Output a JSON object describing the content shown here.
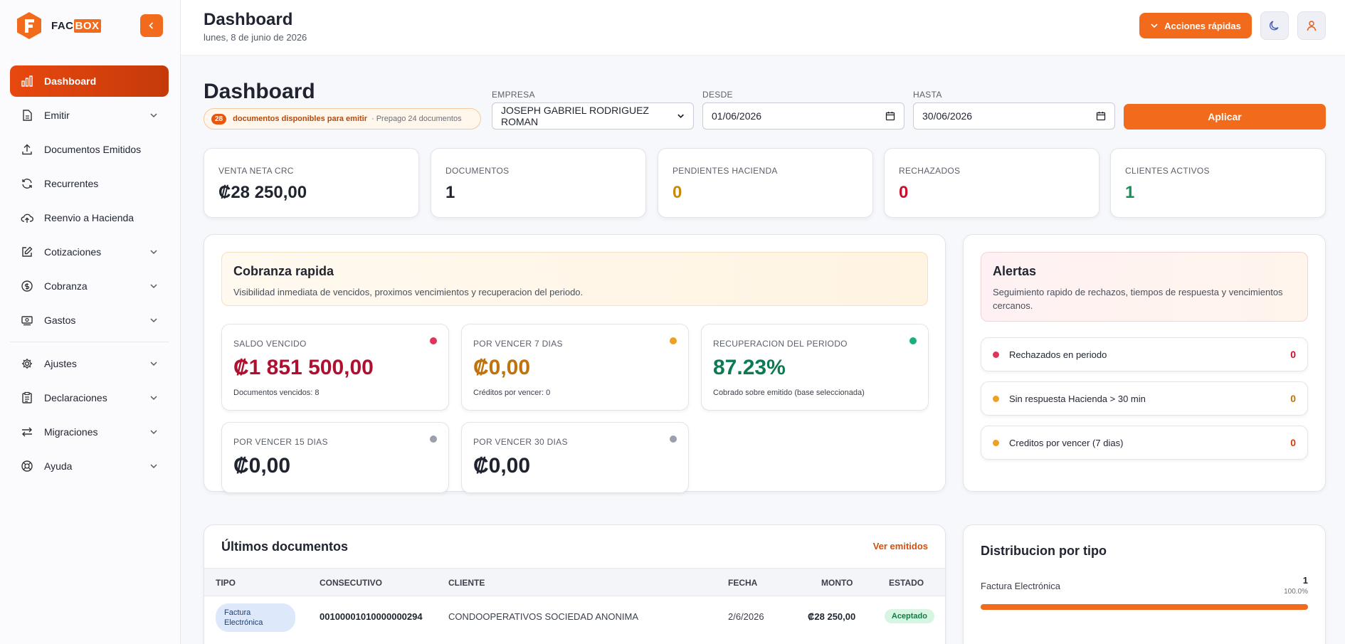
{
  "brand": {
    "name_a": "FAC",
    "name_b": "BOX"
  },
  "sidebar": {
    "items": [
      {
        "label": "Dashboard"
      },
      {
        "label": "Emitir"
      },
      {
        "label": "Documentos Emitidos"
      },
      {
        "label": "Recurrentes"
      },
      {
        "label": "Reenvio a Hacienda"
      },
      {
        "label": "Cotizaciones"
      },
      {
        "label": "Cobranza"
      },
      {
        "label": "Gastos"
      },
      {
        "label": "Ajustes"
      },
      {
        "label": "Declaraciones"
      },
      {
        "label": "Migraciones"
      },
      {
        "label": "Ayuda"
      }
    ]
  },
  "header": {
    "title": "Dashboard",
    "date": "lunes, 8 de junio de 2026",
    "quick_actions": "Acciones rápidas"
  },
  "main": {
    "title": "Dashboard",
    "pill": {
      "count": "28",
      "message": "documentos disponibles para emitir",
      "sub": "· Prepago 24 documentos"
    }
  },
  "filters": {
    "empresa_label": "EMPRESA",
    "empresa_value": "JOSEPH GABRIEL RODRIGUEZ ROMAN",
    "desde_label": "DESDE",
    "desde_value": "01/06/2026",
    "hasta_label": "HASTA",
    "hasta_value": "30/06/2026",
    "apply": "Aplicar"
  },
  "kpis": [
    {
      "label": "VENTA NETA CRC",
      "value": "₡28 250,00",
      "color": "#1f2430"
    },
    {
      "label": "DOCUMENTOS",
      "value": "1",
      "color": "#1f2430"
    },
    {
      "label": "PENDIENTES HACIENDA",
      "value": "0",
      "color": "#c98a0c"
    },
    {
      "label": "RECHAZADOS",
      "value": "0",
      "color": "#c8102e"
    },
    {
      "label": "CLIENTES ACTIVOS",
      "value": "1",
      "color": "#16915a"
    }
  ],
  "cobranza": {
    "title": "Cobranza rapida",
    "desc": "Visibilidad inmediata de vencidos, proximos vencimientos y recuperacion del periodo.",
    "cards": [
      {
        "label": "SALDO VENCIDO",
        "value": "₡1 851 500,00",
        "sub": "Documentos vencidos: 8",
        "color": "#b01030",
        "dot": "#e0345a"
      },
      {
        "label": "POR VENCER 7 DIAS",
        "value": "₡0,00",
        "sub": "Créditos por vencer: 0",
        "color": "#c0720e",
        "dot": "#f0a020"
      },
      {
        "label": "RECUPERACION DEL PERIODO",
        "value": "87.23%",
        "sub": "Cobrado sobre emitido (base seleccionada)",
        "color": "#0e7a52",
        "dot": "#18b078"
      },
      {
        "label": "POR VENCER 15 DIAS",
        "value": "₡0,00",
        "sub": "",
        "color": "#1f2430",
        "dot": "#9aa0ac"
      },
      {
        "label": "POR VENCER 30 DIAS",
        "value": "₡0,00",
        "sub": "",
        "color": "#1f2430",
        "dot": "#9aa0ac"
      }
    ]
  },
  "alertas": {
    "title": "Alertas",
    "desc": "Seguimiento rapido de rechazos, tiempos de respuesta y vencimientos cercanos.",
    "rows": [
      {
        "label": "Rechazados en periodo",
        "count": "0",
        "dot": "#e0345a",
        "color": "#c8102e"
      },
      {
        "label": "Sin respuesta Hacienda > 30 min",
        "count": "0",
        "dot": "#f0a020",
        "color": "#c0720e"
      },
      {
        "label": "Creditos por vencer (7 dias)",
        "count": "0",
        "dot": "#f0a020",
        "color": "#d0400e"
      }
    ]
  },
  "docs": {
    "title": "Últimos documentos",
    "link": "Ver emitidos",
    "cols": [
      "TIPO",
      "CONSECUTIVO",
      "CLIENTE",
      "FECHA",
      "MONTO",
      "ESTADO"
    ],
    "rows": [
      {
        "tipo": "Factura Electrónica",
        "consecutivo": "00100001010000000294",
        "cliente": "CONDOOPERATIVOS SOCIEDAD ANONIMA",
        "fecha": "2/6/2026",
        "monto": "₡28 250,00",
        "estado": "Aceptado"
      }
    ]
  },
  "distribucion": {
    "title": "Distribucion por tipo",
    "items": [
      {
        "label": "Factura Electrónica",
        "count": "1",
        "pct": "100.0%",
        "fraction": 1.0
      }
    ]
  }
}
